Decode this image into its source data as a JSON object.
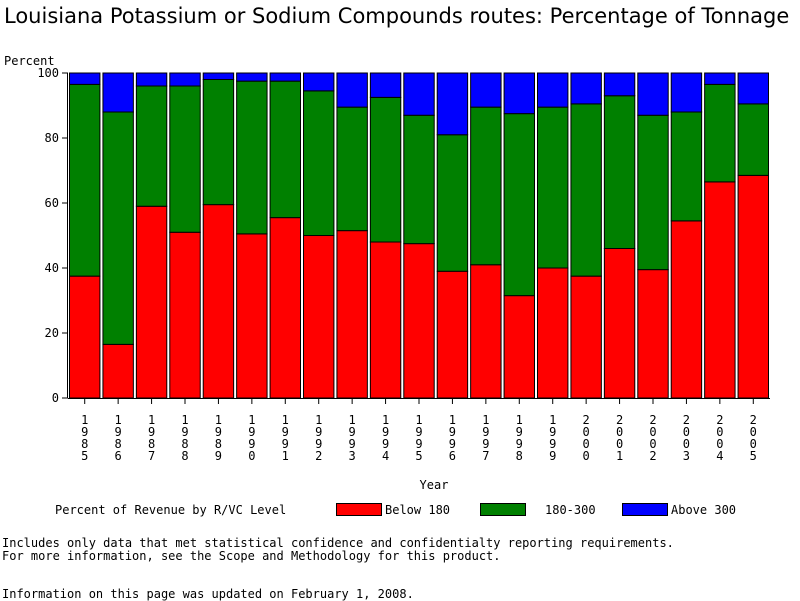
{
  "title": "Louisiana Potassium or Sodium Compounds routes: Percentage of Tonnage",
  "footnotes": [
    "Includes only data that met statistical confidence and confidentialty reporting requirements.",
    "For more information, see the Scope and Methodology for this product."
  ],
  "updated": "Information on this page was updated on February 1, 2008.",
  "legend": {
    "title": "Percent of Revenue by R/VC Level",
    "items": [
      {
        "label": "Below 180",
        "color": "#ff0000"
      },
      {
        "label": "180-300",
        "color": "#008000"
      },
      {
        "label": "Above 300",
        "color": "#0000ff"
      }
    ]
  },
  "chart_data": {
    "type": "bar",
    "stacked": true,
    "title": "Louisiana Potassium or Sodium Compounds routes: Percentage of Tonnage",
    "ylabel": "Percent",
    "xlabel": "Year",
    "ylim": [
      0,
      100
    ],
    "yticks": [
      0,
      20,
      40,
      60,
      80,
      100
    ],
    "categories": [
      "1985",
      "1986",
      "1987",
      "1988",
      "1989",
      "1990",
      "1991",
      "1992",
      "1993",
      "1994",
      "1995",
      "1996",
      "1997",
      "1998",
      "1999",
      "2000",
      "2001",
      "2002",
      "2003",
      "2004",
      "2005"
    ],
    "series": [
      {
        "name": "Below 180",
        "color": "#ff0000",
        "values": [
          37.5,
          16.5,
          59,
          51,
          59.5,
          50.5,
          55.5,
          50,
          51.5,
          48,
          47.5,
          39,
          41,
          31.5,
          40,
          37.5,
          46,
          39.5,
          54.5,
          66.5,
          68.5
        ]
      },
      {
        "name": "180-300",
        "color": "#008000",
        "values": [
          59,
          71.5,
          37,
          45,
          38.5,
          47,
          42,
          44.5,
          38,
          44.5,
          39.5,
          42,
          48.5,
          56,
          49.5,
          53,
          47,
          47.5,
          33.5,
          30,
          22
        ]
      },
      {
        "name": "Above 300",
        "color": "#0000ff",
        "values": [
          3.5,
          12,
          4,
          4,
          2,
          2.5,
          2.5,
          5.5,
          10.5,
          7.5,
          13,
          19,
          10.5,
          12.5,
          10.5,
          9.5,
          7,
          13,
          12,
          3.5,
          9.5
        ]
      }
    ]
  }
}
